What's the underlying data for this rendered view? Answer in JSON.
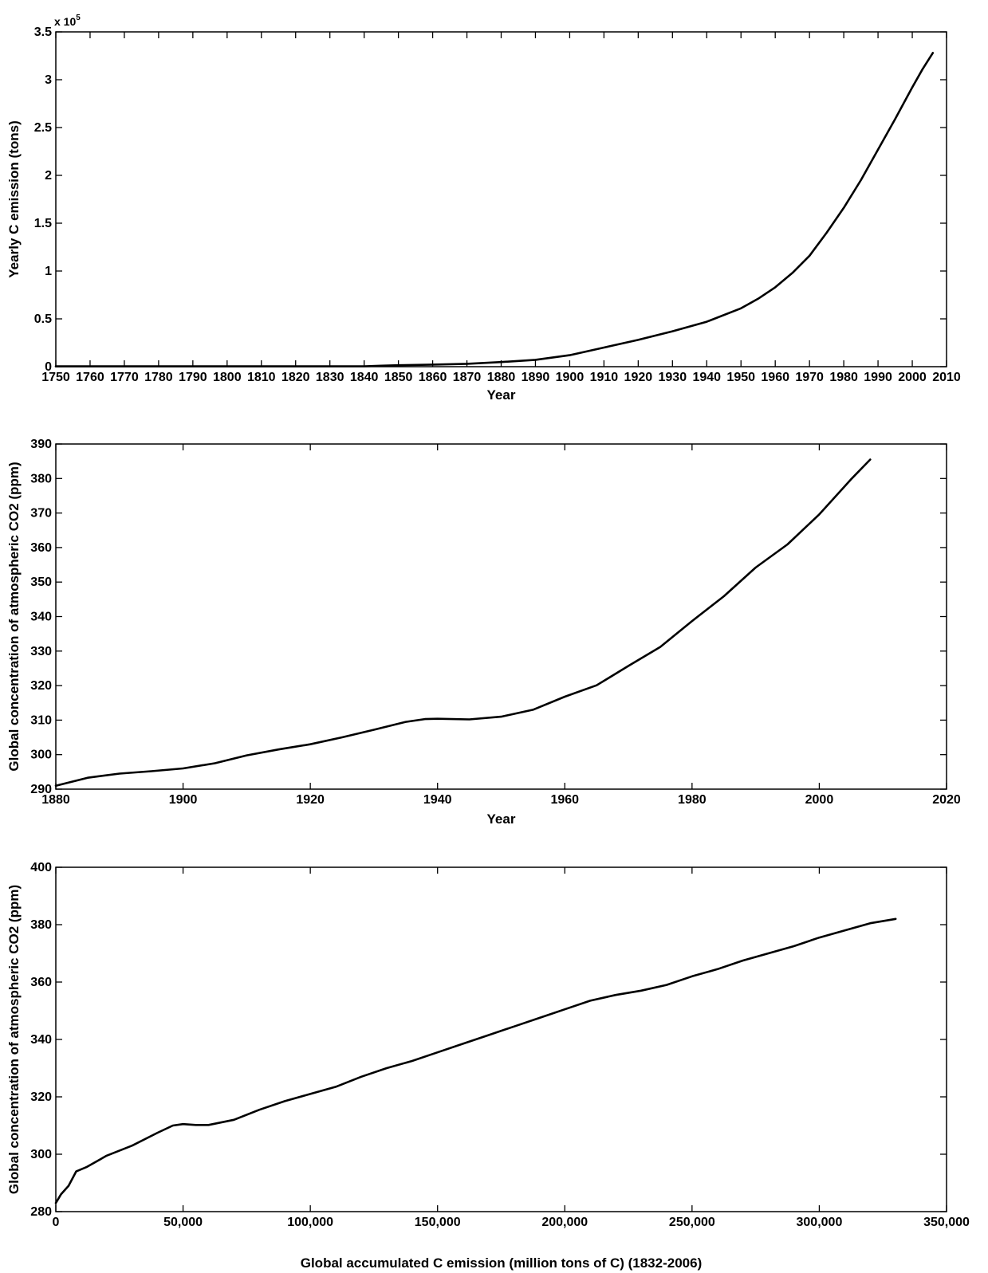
{
  "chart_data": [
    {
      "type": "line",
      "title": "",
      "xlabel": "Year",
      "ylabel": "Yearly C emission (tons)",
      "y_exponent_label": "x 10",
      "y_exponent_power": "5",
      "xlim": [
        1750,
        2010
      ],
      "ylim": [
        0,
        3.5
      ],
      "x_ticks": [
        1750,
        1760,
        1770,
        1780,
        1790,
        1800,
        1810,
        1820,
        1830,
        1840,
        1850,
        1860,
        1870,
        1880,
        1890,
        1900,
        1910,
        1920,
        1930,
        1940,
        1950,
        1960,
        1970,
        1980,
        1990,
        2000,
        2010
      ],
      "x_tick_labels": [
        "1750",
        "1760",
        "1770",
        "1780",
        "1790",
        "1800",
        "1810",
        "1820",
        "1830",
        "1840",
        "1850",
        "1860",
        "1870",
        "1880",
        "1890",
        "1900",
        "1910",
        "1920",
        "1930",
        "1940",
        "1950",
        "1960",
        "1970",
        "1980",
        "1990",
        "2000",
        "2010"
      ],
      "y_ticks": [
        0,
        0.5,
        1,
        1.5,
        2,
        2.5,
        3,
        3.5
      ],
      "y_tick_labels": [
        "0",
        "0.5",
        "1",
        "1.5",
        "2",
        "2.5",
        "3",
        "3.5"
      ],
      "grid": false,
      "series": [
        {
          "x": [
            1750,
            1800,
            1840,
            1845,
            1850,
            1860,
            1870,
            1880,
            1890,
            1900,
            1910,
            1920,
            1930,
            1940,
            1950,
            1955,
            1960,
            1965,
            1970,
            1975,
            1980,
            1985,
            1990,
            1995,
            2000,
            2003,
            2006
          ],
          "values": [
            0.003,
            0.003,
            0.004,
            0.01,
            0.015,
            0.022,
            0.03,
            0.048,
            0.072,
            0.12,
            0.2,
            0.28,
            0.37,
            0.47,
            0.61,
            0.71,
            0.83,
            0.98,
            1.16,
            1.4,
            1.66,
            1.95,
            2.27,
            2.59,
            2.92,
            3.11,
            3.28
          ]
        }
      ]
    },
    {
      "type": "line",
      "title": "",
      "xlabel": "Year",
      "ylabel": "Global concentration of atmospheric CO2 (ppm)",
      "xlim": [
        1880,
        2020
      ],
      "ylim": [
        290,
        390
      ],
      "x_ticks": [
        1880,
        1900,
        1920,
        1940,
        1960,
        1980,
        2000,
        2020
      ],
      "x_tick_labels": [
        "1880",
        "1900",
        "1920",
        "1940",
        "1960",
        "1980",
        "2000",
        "2020"
      ],
      "y_ticks": [
        290,
        300,
        310,
        320,
        330,
        340,
        350,
        360,
        370,
        380,
        390
      ],
      "y_tick_labels": [
        "290",
        "300",
        "310",
        "320",
        "330",
        "340",
        "350",
        "360",
        "370",
        "380",
        "390"
      ],
      "grid": false,
      "series": [
        {
          "x": [
            1880,
            1885,
            1890,
            1895,
            1900,
            1905,
            1910,
            1915,
            1920,
            1925,
            1930,
            1935,
            1938,
            1940,
            1945,
            1950,
            1955,
            1960,
            1965,
            1970,
            1975,
            1980,
            1985,
            1990,
            1995,
            2000,
            2005,
            2008
          ],
          "values": [
            291,
            293.3,
            294.5,
            295.2,
            296,
            297.5,
            299.8,
            301.5,
            303,
            305,
            307.2,
            309.5,
            310.3,
            310.4,
            310.2,
            311,
            313,
            316.8,
            320.1,
            325.7,
            331.2,
            338.7,
            345.9,
            354.2,
            360.9,
            369.6,
            379.8,
            385.5
          ]
        }
      ]
    },
    {
      "type": "line",
      "title": "",
      "xlabel": "Global accumulated C emission (million tons of C) (1832-2006)",
      "ylabel": "Global concentration of atmospheric CO2 (ppm)",
      "xlim": [
        0,
        350000
      ],
      "ylim": [
        280,
        400
      ],
      "x_ticks": [
        0,
        50000,
        100000,
        150000,
        200000,
        250000,
        300000,
        350000
      ],
      "x_tick_labels": [
        "0",
        "50,000",
        "100,000",
        "150,000",
        "200,000",
        "250,000",
        "300,000",
        "350,000"
      ],
      "y_ticks": [
        280,
        300,
        320,
        340,
        360,
        380,
        400
      ],
      "y_tick_labels": [
        "280",
        "300",
        "320",
        "340",
        "360",
        "380",
        "400"
      ],
      "grid": false,
      "series": [
        {
          "x": [
            0,
            2000,
            5000,
            8000,
            12000,
            20000,
            30000,
            40000,
            46000,
            50000,
            55000,
            60000,
            70000,
            80000,
            90000,
            100000,
            110000,
            120000,
            130000,
            140000,
            150000,
            160000,
            170000,
            180000,
            190000,
            200000,
            210000,
            220000,
            230000,
            240000,
            250000,
            260000,
            270000,
            280000,
            290000,
            300000,
            310000,
            320000,
            330000
          ],
          "values": [
            283,
            286,
            289,
            294,
            295.5,
            299.5,
            303,
            307.5,
            310,
            310.5,
            310.2,
            310.2,
            312,
            315.5,
            318.5,
            321,
            323.5,
            327,
            330,
            332.5,
            335.5,
            338.5,
            341.5,
            344.5,
            347.5,
            350.5,
            353.5,
            355.5,
            357,
            359,
            362,
            364.5,
            367.5,
            370,
            372.5,
            375.5,
            378,
            380.5,
            382
          ]
        }
      ]
    }
  ]
}
